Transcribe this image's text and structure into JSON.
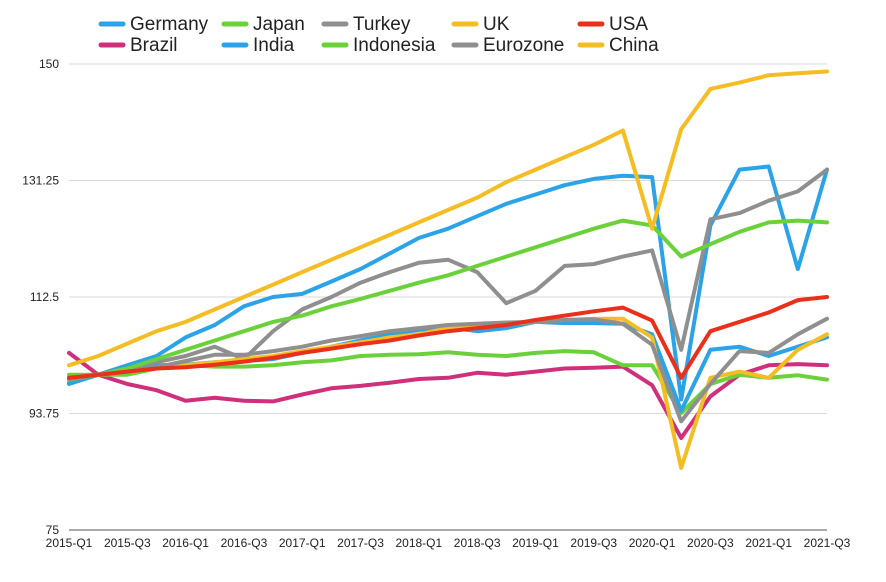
{
  "chart_data": {
    "type": "line",
    "title": "",
    "xlabel": "",
    "ylabel": "",
    "ylim": [
      75,
      150
    ],
    "yticks": [
      "75",
      "93.75",
      "112.5",
      "131.25",
      "150"
    ],
    "ytick_values": [
      75,
      93.75,
      112.5,
      131.25,
      150
    ],
    "x": [
      "2015-Q1",
      "2015-Q2",
      "2015-Q3",
      "2015-Q4",
      "2016-Q1",
      "2016-Q2",
      "2016-Q3",
      "2016-Q4",
      "2017-Q1",
      "2017-Q2",
      "2017-Q3",
      "2017-Q4",
      "2018-Q1",
      "2018-Q2",
      "2018-Q3",
      "2018-Q4",
      "2019-Q1",
      "2019-Q2",
      "2019-Q3",
      "2019-Q4",
      "2020-Q1",
      "2020-Q2",
      "2020-Q3",
      "2020-Q4",
      "2021-Q1",
      "2021-Q2",
      "2021-Q3"
    ],
    "xtick_labels": [
      "2015-Q1",
      "2015-Q3",
      "2016-Q1",
      "2016-Q3",
      "2017-Q1",
      "2017-Q3",
      "2018-Q1",
      "2018-Q3",
      "2019-Q1",
      "2019-Q3",
      "2020-Q1",
      "2020-Q3",
      "2021-Q1",
      "2021-Q3"
    ],
    "grid": true,
    "legend_position": "top",
    "series": [
      {
        "name": "Germany",
        "color": "#2aa3e8",
        "values": [
          98.5,
          100,
          101.5,
          103,
          106,
          108,
          111,
          112.5,
          113,
          115,
          117,
          119.5,
          122,
          123.5,
          125.5,
          127.5,
          129,
          130.5,
          131.5,
          132,
          131.8,
          96,
          124,
          133,
          133.5,
          117,
          133
        ]
      },
      {
        "name": "Brazil",
        "color": "#d0307b",
        "values": [
          103.5,
          100,
          98.5,
          97.5,
          95.8,
          96.3,
          95.8,
          95.7,
          96.8,
          97.8,
          98.2,
          98.7,
          99.3,
          99.5,
          100.3,
          100,
          100.5,
          101,
          101.1,
          101.3,
          98.3,
          89.8,
          96.5,
          100,
          101.5,
          101.7,
          101.5
        ]
      },
      {
        "name": "Japan",
        "color": "#6bd13a",
        "values": [
          100,
          100,
          100,
          101,
          101.5,
          101.3,
          101.3,
          101.5,
          102,
          102.3,
          103,
          103.2,
          103.3,
          103.6,
          103.2,
          103,
          103.5,
          103.8,
          103.6,
          101.5,
          101.5,
          93.8,
          98.5,
          100,
          99.5,
          99.9,
          99.2
        ]
      },
      {
        "name": "India",
        "color": "#2aa3e8",
        "values": [
          98.7,
          100,
          100.5,
          101.5,
          101.6,
          102,
          102.2,
          102.5,
          103.5,
          104.5,
          105.5,
          106.5,
          107.2,
          107.6,
          107,
          107.5,
          108.5,
          108.3,
          108.3,
          108.2,
          106.5,
          94.2,
          104,
          104.5,
          103,
          104.5,
          106
        ]
      },
      {
        "name": "Turkey",
        "color": "#8f8f8f",
        "values": [
          99.5,
          100,
          101,
          102,
          103,
          104.5,
          102.5,
          107,
          110.5,
          112.5,
          114.8,
          116.5,
          118,
          118.5,
          116.5,
          111.5,
          113.5,
          117.5,
          117.8,
          119,
          120,
          104,
          125,
          126,
          128,
          129.5,
          133
        ]
      },
      {
        "name": "Indonesia",
        "color": "#6bd13a",
        "values": [
          99.2,
          100,
          101,
          102.5,
          104,
          105.5,
          107,
          108.5,
          109.5,
          111,
          112.2,
          113.5,
          114.8,
          116,
          117.5,
          119,
          120.5,
          122,
          123.5,
          124.8,
          124,
          119,
          121,
          123,
          124.5,
          124.8,
          124.5
        ]
      },
      {
        "name": "UK",
        "color": "#f5bd24",
        "values": [
          99.5,
          100,
          100.5,
          101,
          101.5,
          102,
          102.5,
          103,
          103.8,
          104.5,
          105.2,
          106,
          106.5,
          107.5,
          108,
          108.2,
          108.5,
          108.8,
          109,
          109,
          106,
          85,
          99.5,
          100.5,
          99.5,
          104,
          106.5
        ]
      },
      {
        "name": "Eurozone",
        "color": "#8f8f8f",
        "values": [
          99.3,
          100,
          100.5,
          101.2,
          102.2,
          103.2,
          103.2,
          103.8,
          104.5,
          105.5,
          106.2,
          107,
          107.5,
          108,
          108.2,
          108.4,
          108.5,
          108.8,
          108.9,
          108.2,
          104.8,
          92.5,
          98.5,
          103.8,
          103.5,
          106.5,
          109
        ]
      },
      {
        "name": "USA",
        "color": "#ea2f1b",
        "values": [
          99.5,
          100,
          100.5,
          101,
          101.2,
          101.6,
          102.1,
          102.7,
          103.5,
          104.2,
          104.9,
          105.5,
          106.3,
          107,
          107.5,
          108,
          108.8,
          109.5,
          110.2,
          110.8,
          108.7,
          99.5,
          107,
          108.5,
          110,
          112,
          112.5
        ]
      },
      {
        "name": "China",
        "color": "#f5bd24",
        "values": [
          101.5,
          103,
          105,
          107,
          108.5,
          110.5,
          112.5,
          114.5,
          116.5,
          118.5,
          120.5,
          122.5,
          124.5,
          126.5,
          128.5,
          131,
          133,
          135,
          137,
          139.3,
          123.5,
          139.5,
          146,
          147,
          148.2,
          148.5,
          148.8
        ]
      }
    ]
  }
}
